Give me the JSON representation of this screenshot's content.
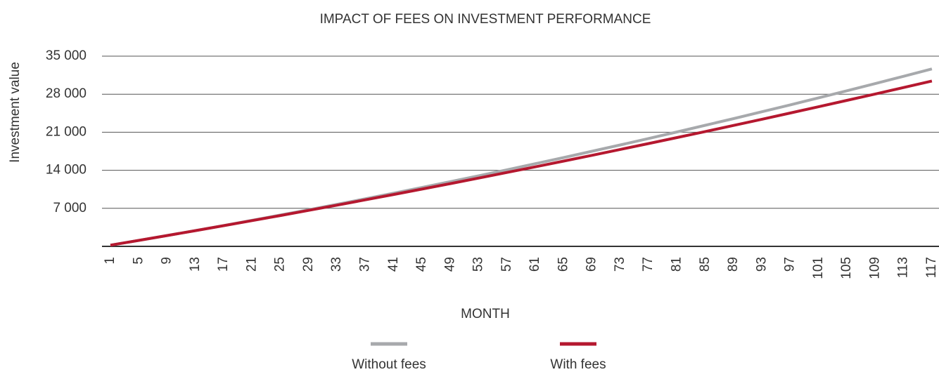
{
  "chart_data": {
    "type": "line",
    "title": "IMPACT OF FEES ON INVESTMENT PERFORMANCE",
    "x_label": "MONTH",
    "y_label": "Investment value",
    "x": [
      1,
      5,
      9,
      13,
      17,
      21,
      25,
      29,
      33,
      37,
      41,
      45,
      49,
      53,
      57,
      61,
      65,
      69,
      73,
      77,
      81,
      85,
      89,
      93,
      97,
      101,
      105,
      109,
      113,
      117
    ],
    "series": [
      {
        "name": "Without fees",
        "color": "#a7a9ac",
        "values": [
          218,
          1098,
          1996,
          2911,
          3842,
          4791,
          5756,
          6739,
          7738,
          8755,
          9788,
          10838,
          11906,
          12990,
          14091,
          15209,
          16344,
          17496,
          18665,
          19851,
          21054,
          22274,
          23511,
          24765,
          26036,
          27324,
          28628,
          29950,
          31289,
          32644
        ]
      },
      {
        "name": "With fees",
        "color": "#b5182f",
        "values": [
          218,
          1099,
          1991,
          2895,
          3810,
          4737,
          5675,
          6625,
          7586,
          8559,
          9543,
          10539,
          11546,
          12565,
          13596,
          14638,
          15691,
          16756,
          17832,
          18920,
          20020,
          21131,
          22254,
          23388,
          24533,
          25690,
          26859,
          28039,
          29231,
          30434
        ]
      }
    ],
    "xlim": [
      1,
      118
    ],
    "xticks": [
      1,
      5,
      9,
      13,
      17,
      21,
      25,
      29,
      33,
      37,
      41,
      45,
      49,
      53,
      57,
      61,
      65,
      69,
      73,
      77,
      81,
      85,
      89,
      93,
      97,
      101,
      105,
      109,
      113,
      117
    ],
    "ylim": [
      0,
      35000
    ],
    "yticks": [
      {
        "value": 7000,
        "label": "7 000"
      },
      {
        "value": 14000,
        "label": "14 000"
      },
      {
        "value": 21000,
        "label": "21 000"
      },
      {
        "value": 28000,
        "label": "28 000"
      },
      {
        "value": 35000,
        "label": "35 000"
      }
    ],
    "grid": true
  }
}
